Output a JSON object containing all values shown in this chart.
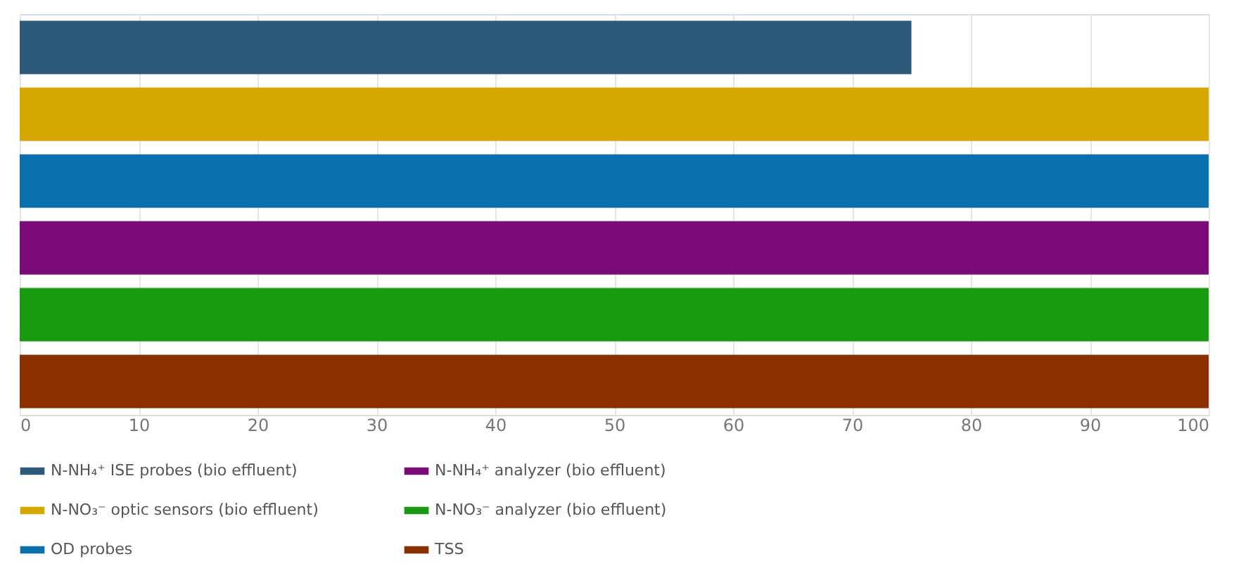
{
  "chart_data": {
    "type": "bar",
    "orientation": "horizontal",
    "categories": [
      null,
      null,
      null,
      null,
      null,
      null
    ],
    "series": [
      {
        "name": "N-NH₄⁺ ISE probes (bio effluent)",
        "color": "#2d5a78",
        "values": [
          75,
          null,
          null,
          null,
          null,
          null
        ]
      },
      {
        "name": "N-NO₃⁻ optic sensors (bio effluent)",
        "color": "#d4a800",
        "values": [
          null,
          100,
          null,
          null,
          null,
          null
        ]
      },
      {
        "name": "OD probes",
        "color": "#0a6fad",
        "values": [
          null,
          null,
          100,
          null,
          null,
          null
        ]
      },
      {
        "name": "N-NH₄⁺ analyzer (bio effluent)",
        "color": "#7a0a78",
        "values": [
          null,
          null,
          null,
          100,
          null,
          null
        ]
      },
      {
        "name": "N-NO₃⁻ analyzer (bio effluent)",
        "color": "#1a9a10",
        "values": [
          null,
          null,
          null,
          null,
          100,
          null
        ]
      },
      {
        "name": "TSS",
        "color": "#8a3000",
        "values": [
          null,
          null,
          null,
          null,
          null,
          100
        ]
      }
    ],
    "xlim": [
      0,
      100
    ],
    "xticks": [
      0,
      10,
      20,
      30,
      40,
      50,
      60,
      70,
      80,
      90,
      100
    ],
    "grid": "x",
    "legend": "bottom",
    "tick_labels": "x"
  }
}
